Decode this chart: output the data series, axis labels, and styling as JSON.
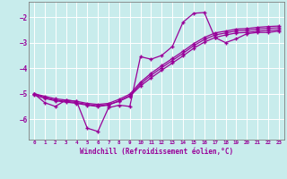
{
  "xlabel": "Windchill (Refroidissement éolien,°C)",
  "bg_color": "#c8ecec",
  "grid_color": "#ffffff",
  "line_color": "#990099",
  "xlim": [
    -0.5,
    23.5
  ],
  "ylim": [
    -6.8,
    -1.4
  ],
  "yticks": [
    -6,
    -5,
    -4,
    -3,
    -2
  ],
  "xticks": [
    0,
    1,
    2,
    3,
    4,
    5,
    6,
    7,
    8,
    9,
    10,
    11,
    12,
    13,
    14,
    15,
    16,
    17,
    18,
    19,
    20,
    21,
    22,
    23
  ],
  "line1_x": [
    0,
    1,
    2,
    3,
    4,
    5,
    6,
    7,
    8,
    9,
    10,
    11,
    12,
    13,
    14,
    15,
    16,
    17,
    18,
    19,
    20,
    21,
    22,
    23
  ],
  "line1_y": [
    -5.0,
    -5.35,
    -5.5,
    -5.25,
    -5.3,
    -6.35,
    -6.48,
    -5.55,
    -5.45,
    -5.5,
    -3.55,
    -3.65,
    -3.5,
    -3.15,
    -2.2,
    -1.85,
    -1.82,
    -2.8,
    -3.0,
    -2.85,
    -2.65,
    -2.6,
    -2.6,
    -2.55
  ],
  "line2_x": [
    0,
    1,
    2,
    3,
    4,
    5,
    6,
    7,
    8,
    9,
    10,
    11,
    12,
    13,
    14,
    15,
    16,
    17,
    18,
    19,
    20,
    21,
    22,
    23
  ],
  "line2_y": [
    -5.0,
    -5.15,
    -5.25,
    -5.3,
    -5.35,
    -5.42,
    -5.48,
    -5.42,
    -5.3,
    -5.1,
    -4.7,
    -4.38,
    -4.08,
    -3.8,
    -3.52,
    -3.22,
    -2.98,
    -2.8,
    -2.7,
    -2.62,
    -2.6,
    -2.55,
    -2.52,
    -2.5
  ],
  "line3_x": [
    0,
    1,
    2,
    3,
    4,
    5,
    6,
    7,
    8,
    9,
    10,
    11,
    12,
    13,
    14,
    15,
    16,
    17,
    18,
    19,
    20,
    21,
    22,
    23
  ],
  "line3_y": [
    -5.05,
    -5.18,
    -5.28,
    -5.33,
    -5.38,
    -5.45,
    -5.5,
    -5.45,
    -5.28,
    -5.08,
    -4.62,
    -4.28,
    -3.98,
    -3.7,
    -3.42,
    -3.12,
    -2.88,
    -2.7,
    -2.62,
    -2.54,
    -2.52,
    -2.47,
    -2.44,
    -2.42
  ],
  "line4_x": [
    0,
    1,
    2,
    3,
    4,
    5,
    6,
    7,
    8,
    9,
    10,
    11,
    12,
    13,
    14,
    15,
    16,
    17,
    18,
    19,
    20,
    21,
    22,
    23
  ],
  "line4_y": [
    -5.0,
    -5.1,
    -5.2,
    -5.25,
    -5.3,
    -5.38,
    -5.42,
    -5.38,
    -5.22,
    -5.02,
    -4.55,
    -4.2,
    -3.9,
    -3.62,
    -3.34,
    -3.04,
    -2.8,
    -2.62,
    -2.55,
    -2.47,
    -2.45,
    -2.4,
    -2.37,
    -2.35
  ],
  "marker": "+",
  "markersize": 3,
  "linewidth": 0.9
}
